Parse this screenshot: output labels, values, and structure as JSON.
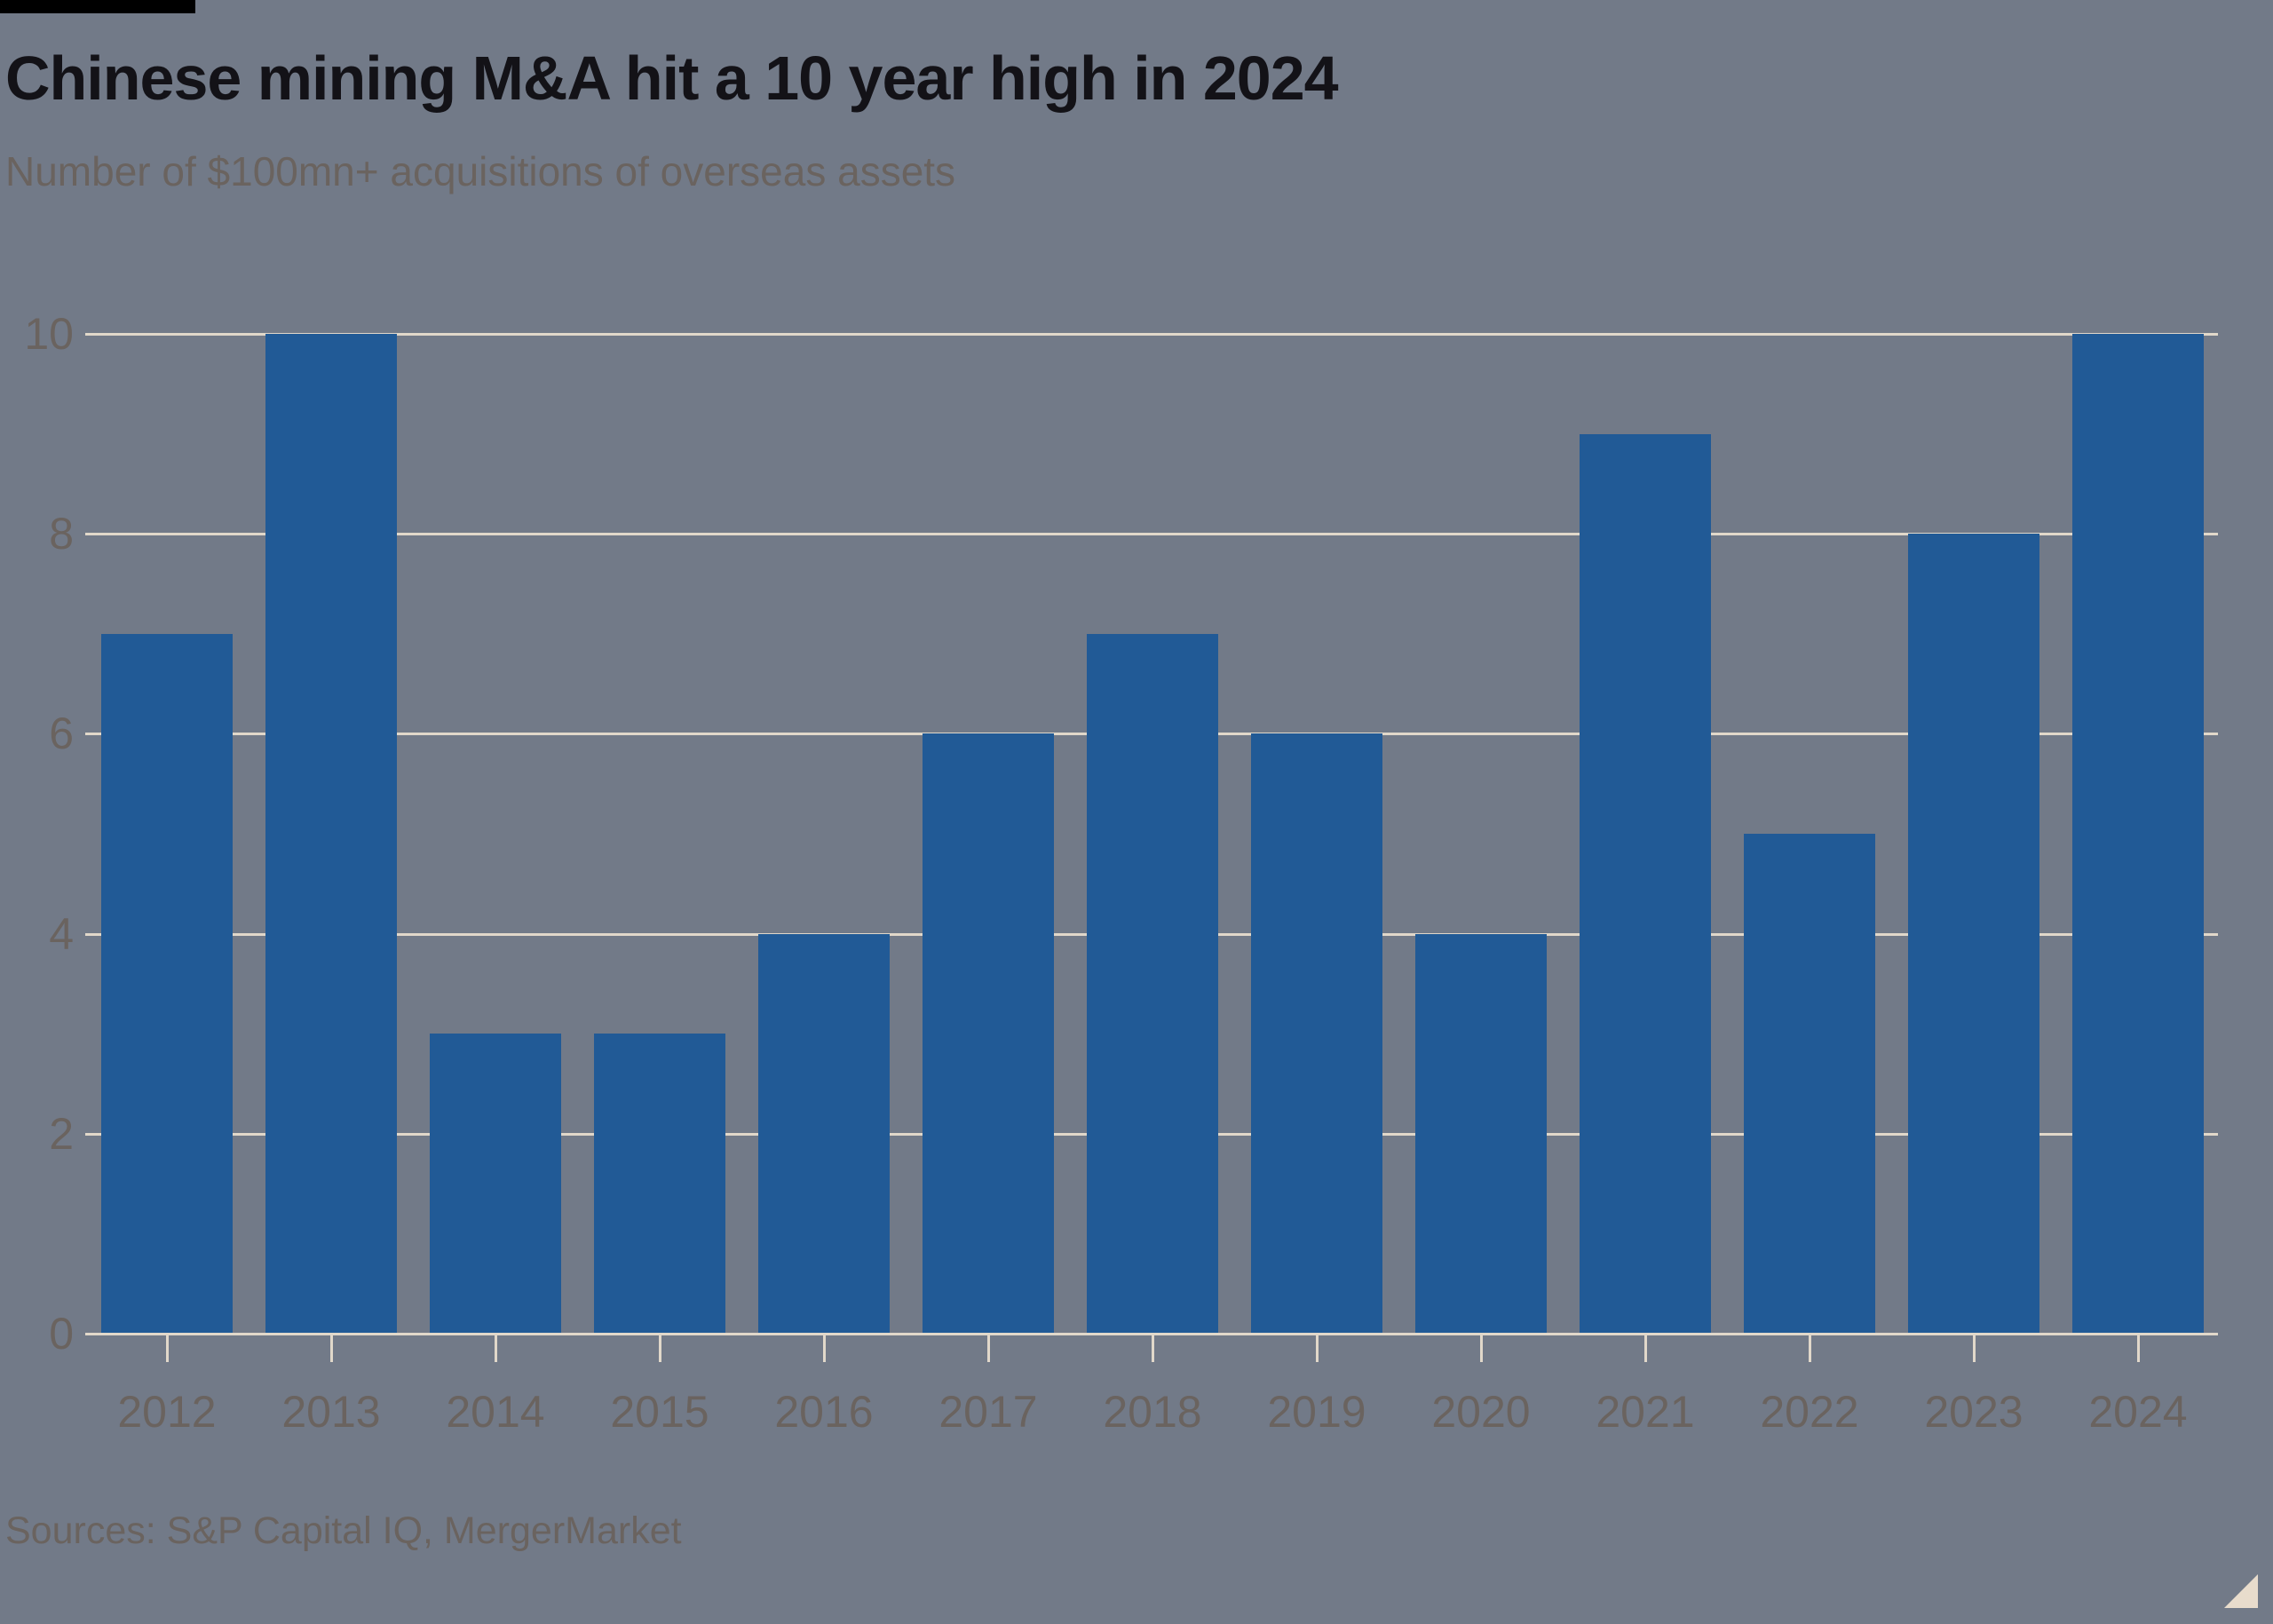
{
  "header": {
    "title": "Chinese mining M&A hit a 10 year high in 2024",
    "subtitle": "Number of $100mn+ acquisitions of overseas assets"
  },
  "chart_data": {
    "type": "bar",
    "categories": [
      "2012",
      "2013",
      "2014",
      "2015",
      "2016",
      "2017",
      "2018",
      "2019",
      "2020",
      "2021",
      "2022",
      "2023",
      "2024"
    ],
    "values": [
      7,
      10,
      3,
      3,
      4,
      6,
      7,
      6,
      4,
      9,
      5,
      8,
      10
    ],
    "title": "Chinese mining M&A hit a 10 year high in 2024",
    "subtitle": "Number of $100mn+ acquisitions of overseas assets",
    "xlabel": "",
    "ylabel": "",
    "ylim": [
      0,
      10
    ],
    "yticks": [
      0,
      2,
      4,
      6,
      8,
      10
    ],
    "grid": "horizontal",
    "legend_position": "none"
  },
  "footer": {
    "sources": "Sources: S&P Capital IQ, MergerMarket"
  },
  "colors": {
    "background": "#727a88",
    "bar": "#215a96",
    "gridline": "#e1d8ca",
    "axis_line": "#e1d8ca",
    "tick": "#e1d8ca",
    "title_text": "#131217",
    "muted_text": "#6a635f",
    "tag": "#000000",
    "expand_icon": "#e8dccc"
  }
}
